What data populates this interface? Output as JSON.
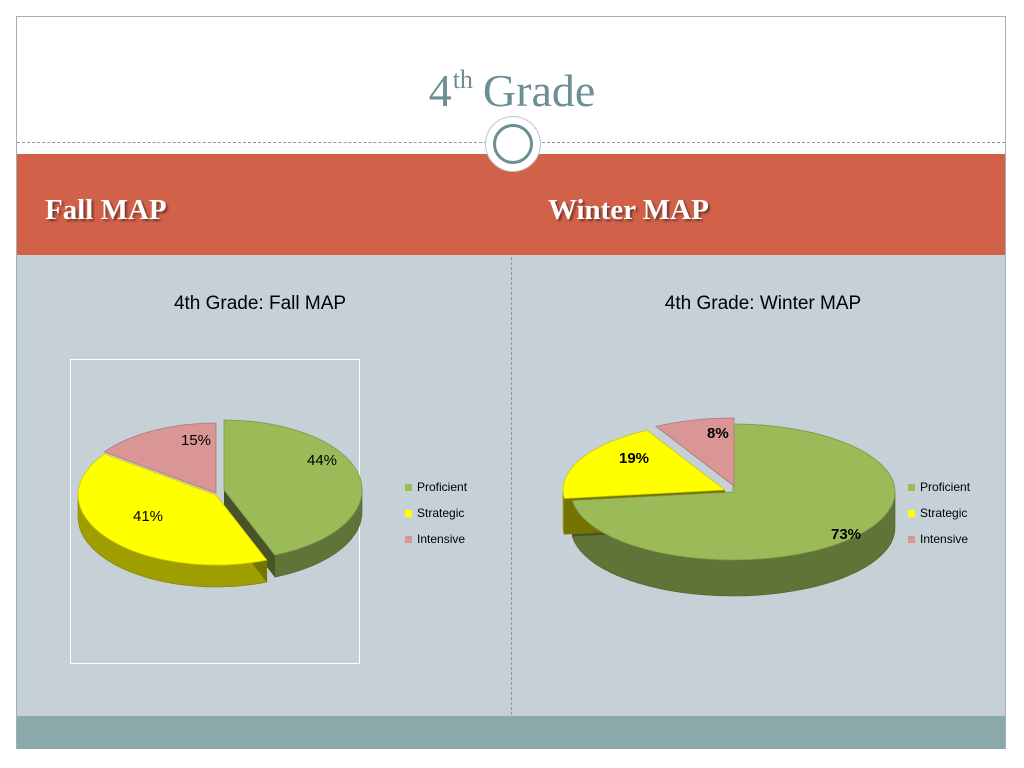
{
  "slide": {
    "title_main": "4",
    "title_sup": "th",
    "title_rest": "Grade"
  },
  "columns": {
    "left_heading": "Fall MAP",
    "right_heading": "Winter MAP"
  },
  "colors": {
    "proficient": "#9bbb59",
    "strategic": "#ffff00",
    "intensive": "#d99694",
    "band": "#d2614a",
    "content_bg": "#c6d0d7",
    "footer": "#8aa9ab"
  },
  "chart_data": [
    {
      "type": "pie",
      "title": "4th Grade: Fall MAP",
      "categories": [
        "Proficient",
        "Strategic",
        "Intensive"
      ],
      "values": [
        44,
        41,
        15
      ],
      "labels": [
        "44%",
        "41%",
        "15%"
      ],
      "legend": "right"
    },
    {
      "type": "pie",
      "title": "4th Grade: Winter MAP",
      "categories": [
        "Proficient",
        "Strategic",
        "Intensive"
      ],
      "values": [
        73,
        19,
        8
      ],
      "labels": [
        "73%",
        "19%",
        "8%"
      ],
      "legend": "right"
    }
  ]
}
